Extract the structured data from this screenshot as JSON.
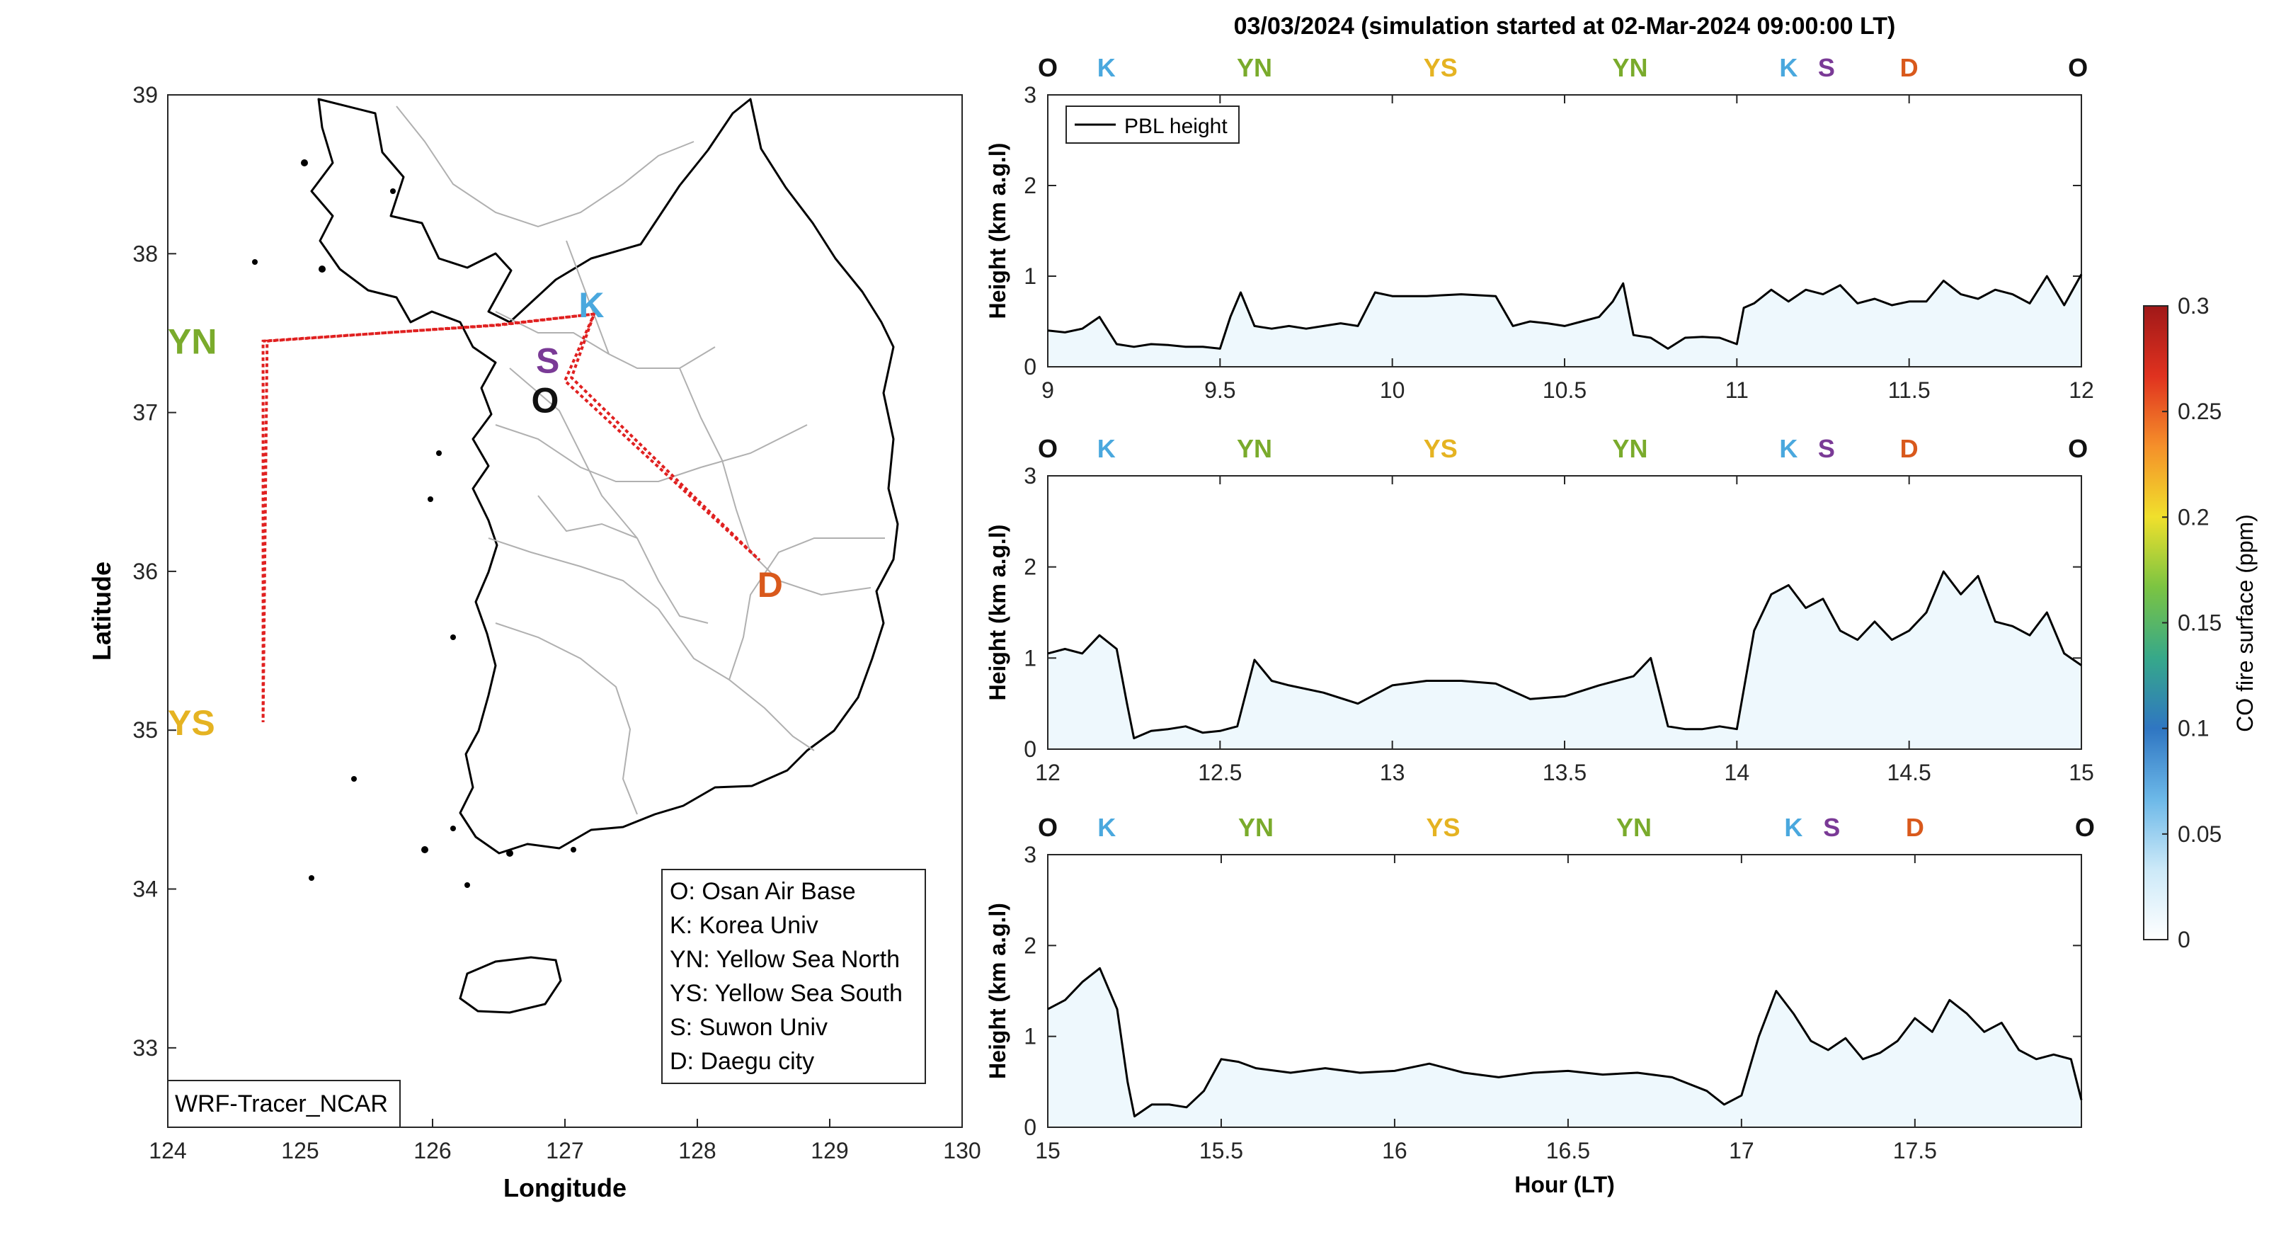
{
  "figure_title": "03/03/2024 (simulation started at 02-Mar-2024 09:00:00 LT)",
  "watermark": "WRF-Tracer_NCAR",
  "colors": {
    "O": "#111111",
    "K": "#4aa8de",
    "YN": "#7aab2c",
    "YS": "#e5b322",
    "S": "#7a3a96",
    "D": "#d9591c",
    "track": "#e02020",
    "line": "#000000"
  },
  "map": {
    "xlabel": "Longitude",
    "ylabel": "Latitude",
    "xlim": [
      124,
      130
    ],
    "ylim": [
      32.5,
      39
    ],
    "xticks": [
      "124",
      "125",
      "126",
      "127",
      "128",
      "129",
      "130"
    ],
    "yticks": [
      "33",
      "34",
      "35",
      "36",
      "37",
      "38",
      "39"
    ],
    "sites": [
      {
        "code": "K",
        "lon": 127.2,
        "lat": 37.68
      },
      {
        "code": "S",
        "lon": 126.87,
        "lat": 37.33
      },
      {
        "code": "O",
        "lon": 126.85,
        "lat": 37.08
      },
      {
        "code": "YN",
        "lon": 124.0,
        "lat": 37.45
      },
      {
        "code": "YS",
        "lon": 124.0,
        "lat": 35.05
      },
      {
        "code": "D",
        "lon": 128.55,
        "lat": 35.92
      }
    ],
    "flight_track": [
      [
        127.22,
        37.62
      ],
      [
        126.47,
        37.55
      ],
      [
        124.75,
        37.45
      ],
      [
        124.72,
        35.05
      ],
      [
        124.72,
        37.45
      ],
      [
        126.5,
        37.55
      ],
      [
        127.22,
        37.62
      ],
      [
        127.0,
        37.2
      ],
      [
        128.47,
        36.07
      ],
      [
        127.05,
        37.22
      ],
      [
        127.22,
        37.62
      ]
    ],
    "legend": [
      "O: Osan Air Base",
      "K: Korea Univ",
      "YN: Yellow Sea North",
      "YS: Yellow Sea South",
      "S: Suwon Univ",
      "D: Daegu city"
    ]
  },
  "chart_data": [
    {
      "type": "line",
      "title": "",
      "xlabel": "",
      "ylabel": "Height (km a.g.l)",
      "xlim": [
        9,
        12
      ],
      "ylim": [
        0,
        3
      ],
      "xticks": [
        "9",
        "9.5",
        "10",
        "10.5",
        "11",
        "11.5",
        "12"
      ],
      "yticks": [
        "0",
        "1",
        "2",
        "3"
      ],
      "legend": {
        "label": "PBL height",
        "position": "top-left"
      },
      "site_labels": [
        {
          "code": "O",
          "x": 9.0
        },
        {
          "code": "K",
          "x": 9.17
        },
        {
          "code": "YN",
          "x": 9.6
        },
        {
          "code": "YS",
          "x": 10.14
        },
        {
          "code": "YN",
          "x": 10.69
        },
        {
          "code": "K",
          "x": 11.15
        },
        {
          "code": "S",
          "x": 11.26
        },
        {
          "code": "D",
          "x": 11.5
        },
        {
          "code": "O",
          "x": 11.99
        }
      ],
      "series": [
        {
          "name": "PBL height",
          "x": [
            9.0,
            9.05,
            9.1,
            9.15,
            9.2,
            9.25,
            9.3,
            9.35,
            9.4,
            9.45,
            9.5,
            9.53,
            9.56,
            9.6,
            9.65,
            9.7,
            9.75,
            9.8,
            9.85,
            9.9,
            9.95,
            10.0,
            10.1,
            10.2,
            10.3,
            10.35,
            10.4,
            10.45,
            10.5,
            10.55,
            10.6,
            10.64,
            10.67,
            10.7,
            10.75,
            10.8,
            10.85,
            10.9,
            10.95,
            11.0,
            11.02,
            11.05,
            11.1,
            11.15,
            11.2,
            11.25,
            11.3,
            11.35,
            11.4,
            11.45,
            11.5,
            11.55,
            11.6,
            11.65,
            11.7,
            11.75,
            11.8,
            11.85,
            11.9,
            11.95,
            12.0
          ],
          "y": [
            0.4,
            0.38,
            0.42,
            0.55,
            0.25,
            0.22,
            0.25,
            0.24,
            0.22,
            0.22,
            0.2,
            0.55,
            0.82,
            0.45,
            0.42,
            0.45,
            0.42,
            0.45,
            0.48,
            0.45,
            0.82,
            0.78,
            0.78,
            0.8,
            0.78,
            0.45,
            0.5,
            0.48,
            0.45,
            0.5,
            0.55,
            0.72,
            0.92,
            0.35,
            0.32,
            0.2,
            0.32,
            0.33,
            0.32,
            0.25,
            0.65,
            0.7,
            0.85,
            0.72,
            0.85,
            0.8,
            0.9,
            0.7,
            0.75,
            0.68,
            0.72,
            0.72,
            0.95,
            0.8,
            0.75,
            0.85,
            0.8,
            0.7,
            1.0,
            0.68,
            1.02
          ]
        }
      ]
    },
    {
      "type": "line",
      "title": "",
      "xlabel": "",
      "ylabel": "Height (km a.g.l)",
      "xlim": [
        12,
        15
      ],
      "ylim": [
        0,
        3
      ],
      "xticks": [
        "12",
        "12.5",
        "13",
        "13.5",
        "14",
        "14.5",
        "15"
      ],
      "yticks": [
        "0",
        "1",
        "2",
        "3"
      ],
      "site_labels": [
        {
          "code": "O",
          "x": 12.0
        },
        {
          "code": "K",
          "x": 12.17
        },
        {
          "code": "YN",
          "x": 12.6
        },
        {
          "code": "YS",
          "x": 13.14
        },
        {
          "code": "YN",
          "x": 13.69
        },
        {
          "code": "K",
          "x": 14.15
        },
        {
          "code": "S",
          "x": 14.26
        },
        {
          "code": "D",
          "x": 14.5
        },
        {
          "code": "O",
          "x": 14.99
        }
      ],
      "series": [
        {
          "name": "PBL height",
          "x": [
            12.0,
            12.05,
            12.1,
            12.15,
            12.2,
            12.23,
            12.25,
            12.3,
            12.35,
            12.4,
            12.45,
            12.5,
            12.55,
            12.6,
            12.65,
            12.7,
            12.8,
            12.9,
            13.0,
            13.1,
            13.2,
            13.3,
            13.4,
            13.5,
            13.6,
            13.7,
            13.75,
            13.8,
            13.85,
            13.9,
            13.95,
            14.0,
            14.05,
            14.1,
            14.15,
            14.2,
            14.25,
            14.3,
            14.35,
            14.4,
            14.45,
            14.5,
            14.55,
            14.6,
            14.65,
            14.7,
            14.75,
            14.8,
            14.85,
            14.9,
            14.95,
            15.0
          ],
          "y": [
            1.05,
            1.1,
            1.05,
            1.25,
            1.1,
            0.5,
            0.12,
            0.2,
            0.22,
            0.25,
            0.18,
            0.2,
            0.25,
            0.98,
            0.75,
            0.7,
            0.62,
            0.5,
            0.7,
            0.75,
            0.75,
            0.72,
            0.55,
            0.58,
            0.7,
            0.8,
            1.0,
            0.25,
            0.22,
            0.22,
            0.25,
            0.22,
            1.3,
            1.7,
            1.8,
            1.55,
            1.65,
            1.3,
            1.2,
            1.4,
            1.2,
            1.3,
            1.5,
            1.95,
            1.7,
            1.9,
            1.4,
            1.35,
            1.25,
            1.5,
            1.05,
            0.92
          ]
        }
      ]
    },
    {
      "type": "line",
      "title": "",
      "xlabel": "Hour (LT)",
      "ylabel": "Height (km a.g.l)",
      "xlim": [
        15,
        17.98
      ],
      "ylim": [
        0,
        3
      ],
      "xticks": [
        "15",
        "15.5",
        "16",
        "16.5",
        "17",
        "17.5"
      ],
      "yticks": [
        "0",
        "1",
        "2",
        "3"
      ],
      "site_labels": [
        {
          "code": "O",
          "x": 15.0
        },
        {
          "code": "K",
          "x": 15.17
        },
        {
          "code": "YN",
          "x": 15.6
        },
        {
          "code": "YS",
          "x": 16.14
        },
        {
          "code": "YN",
          "x": 16.69
        },
        {
          "code": "K",
          "x": 17.15
        },
        {
          "code": "S",
          "x": 17.26
        },
        {
          "code": "D",
          "x": 17.5
        },
        {
          "code": "O",
          "x": 17.99
        }
      ],
      "series": [
        {
          "name": "PBL height",
          "x": [
            15.0,
            15.05,
            15.1,
            15.15,
            15.2,
            15.23,
            15.25,
            15.3,
            15.35,
            15.4,
            15.45,
            15.5,
            15.55,
            15.6,
            15.7,
            15.8,
            15.9,
            16.0,
            16.1,
            16.2,
            16.3,
            16.4,
            16.5,
            16.6,
            16.7,
            16.8,
            16.9,
            16.95,
            17.0,
            17.05,
            17.1,
            17.15,
            17.2,
            17.25,
            17.3,
            17.35,
            17.4,
            17.45,
            17.5,
            17.55,
            17.6,
            17.65,
            17.7,
            17.75,
            17.8,
            17.85,
            17.9,
            17.95,
            17.98
          ],
          "y": [
            1.3,
            1.4,
            1.6,
            1.75,
            1.3,
            0.5,
            0.12,
            0.25,
            0.25,
            0.22,
            0.4,
            0.75,
            0.72,
            0.65,
            0.6,
            0.65,
            0.6,
            0.62,
            0.7,
            0.6,
            0.55,
            0.6,
            0.62,
            0.58,
            0.6,
            0.55,
            0.4,
            0.25,
            0.35,
            1.0,
            1.5,
            1.25,
            0.95,
            0.85,
            0.98,
            0.75,
            0.82,
            0.95,
            1.2,
            1.05,
            1.4,
            1.25,
            1.05,
            1.15,
            0.85,
            0.75,
            0.8,
            0.75,
            0.3
          ]
        }
      ]
    }
  ],
  "colorbar": {
    "label": "CO fire surface (ppm)",
    "range": [
      0,
      0.3
    ],
    "ticks": [
      "0",
      "0.05",
      "0.1",
      "0.15",
      "0.2",
      "0.25",
      "0.3"
    ],
    "colormap": [
      "#ffffff",
      "#cce9f8",
      "#6cb8e8",
      "#2f76c2",
      "#36a88a",
      "#7bc442",
      "#f0e02c",
      "#f5902a",
      "#e0321f",
      "#a01818"
    ]
  }
}
